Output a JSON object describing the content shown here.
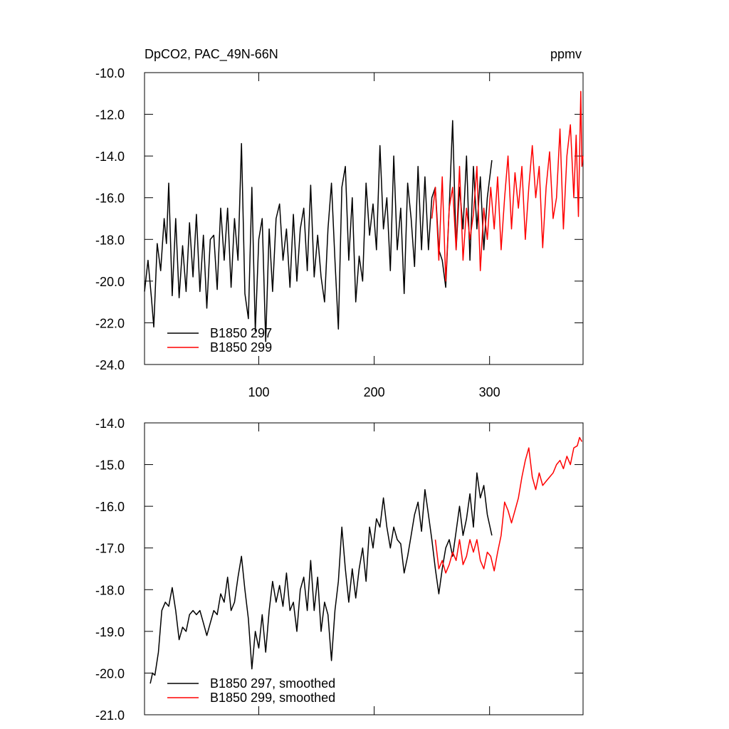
{
  "chart_data": [
    {
      "type": "line",
      "title": "DpCO2, PAC_49N-66N",
      "subtitle": "ppmv",
      "xlim": [
        1,
        381
      ],
      "xticks": [
        100,
        200,
        300
      ],
      "xtick_labels": true,
      "ylim": [
        -24,
        -10
      ],
      "yticks": [
        {
          "value": -24,
          "label": "-24.0"
        },
        {
          "value": -22,
          "label": "-22.0"
        },
        {
          "value": -20,
          "label": "-20.0"
        },
        {
          "value": -18,
          "label": "-18.0"
        },
        {
          "value": -16,
          "label": "-16.0"
        },
        {
          "value": -14,
          "label": "-14.0"
        },
        {
          "value": -12,
          "label": "-12.0"
        },
        {
          "value": -10,
          "label": "-10.0"
        }
      ],
      "legend": "lower left",
      "series": [
        {
          "name": "B1850 297",
          "color": "#000000",
          "x": [
            1,
            4,
            7,
            9,
            12,
            15,
            18,
            20,
            22,
            25,
            28,
            31,
            34,
            37,
            40,
            43,
            46,
            49,
            52,
            55,
            58,
            61,
            64,
            67,
            70,
            73,
            76,
            79,
            82,
            85,
            88,
            91,
            94,
            97,
            100,
            103,
            106,
            109,
            112,
            115,
            118,
            121,
            124,
            127,
            130,
            133,
            136,
            139,
            142,
            145,
            148,
            151,
            154,
            157,
            160,
            163,
            166,
            169,
            172,
            175,
            178,
            181,
            184,
            187,
            190,
            193,
            196,
            199,
            202,
            205,
            208,
            211,
            214,
            217,
            220,
            223,
            226,
            229,
            232,
            235,
            238,
            241,
            244,
            247,
            250,
            253,
            256,
            259,
            262,
            265,
            268,
            271,
            274,
            277,
            280,
            283,
            286,
            289,
            292,
            295,
            298,
            302
          ],
          "values": [
            -20.5,
            -19,
            -20.8,
            -22.2,
            -18.2,
            -19.5,
            -17,
            -18.2,
            -15.3,
            -20.7,
            -17,
            -20.8,
            -18.3,
            -20.5,
            -17.2,
            -19.8,
            -16.8,
            -20.5,
            -17.8,
            -21.3,
            -18,
            -17.8,
            -20.4,
            -16.5,
            -19,
            -16.5,
            -20.3,
            -17,
            -19,
            -13.4,
            -20.6,
            -21.8,
            -15.5,
            -22.4,
            -18,
            -17,
            -22.9,
            -17.5,
            -20.5,
            -17,
            -16.3,
            -19,
            -17.5,
            -20.3,
            -16.8,
            -20,
            -17.5,
            -16.5,
            -19.5,
            -15.4,
            -19.8,
            -17.8,
            -19.8,
            -21,
            -17.5,
            -15.3,
            -19,
            -22.3,
            -15.5,
            -14.5,
            -19,
            -16,
            -21,
            -18.8,
            -20,
            -15.3,
            -17.8,
            -16.3,
            -18.5,
            -13.5,
            -17.5,
            -16,
            -19.5,
            -14,
            -18.5,
            -16.5,
            -20.6,
            -15.3,
            -17,
            -19.3,
            -14.5,
            -18.5,
            -15,
            -18.5,
            -16,
            -15.5,
            -18.5,
            -19,
            -20.3,
            -16.5,
            -12.3,
            -18.5,
            -15.5,
            -17.5,
            -14,
            -19,
            -14.5,
            -17.5,
            -15,
            -18.5,
            -16,
            -14.2
          ]
        },
        {
          "name": "B1850 299",
          "color": "#ff0000",
          "x": [
            250,
            253,
            256,
            259,
            262,
            265,
            268,
            271,
            274,
            277,
            280,
            283,
            286,
            289,
            292,
            295,
            298,
            301,
            304,
            307,
            310,
            313,
            316,
            319,
            322,
            325,
            328,
            331,
            334,
            337,
            340,
            343,
            346,
            349,
            352,
            355,
            358,
            361,
            364,
            367,
            370,
            373,
            375,
            377,
            379,
            380,
            381
          ],
          "values": [
            -17,
            -15.5,
            -19,
            -15,
            -20,
            -16.5,
            -15.5,
            -18.5,
            -14.5,
            -19,
            -16.5,
            -18,
            -16.8,
            -14.5,
            -19.5,
            -16.5,
            -18,
            -15.5,
            -17.5,
            -15,
            -18.5,
            -16,
            -14,
            -17.5,
            -14.8,
            -16.5,
            -14.5,
            -18,
            -15.5,
            -13.5,
            -16,
            -14.5,
            -18.4,
            -15.5,
            -13.8,
            -17,
            -16,
            -12.7,
            -17.5,
            -14,
            -12.5,
            -16,
            -13,
            -16.9,
            -10.9,
            -14.5,
            -14
          ]
        }
      ]
    },
    {
      "type": "line",
      "xlim": [
        1,
        381
      ],
      "xticks": [
        100,
        200,
        300
      ],
      "xtick_labels": false,
      "ylim": [
        -21,
        -14
      ],
      "yticks": [
        {
          "value": -21,
          "label": "-21.0"
        },
        {
          "value": -20,
          "label": "-20.0"
        },
        {
          "value": -19,
          "label": "-19.0"
        },
        {
          "value": -18,
          "label": "-18.0"
        },
        {
          "value": -17,
          "label": "-17.0"
        },
        {
          "value": -16,
          "label": "-16.0"
        },
        {
          "value": -15,
          "label": "-15.0"
        },
        {
          "value": -14,
          "label": "-14.0"
        }
      ],
      "legend": "lower left",
      "series": [
        {
          "name": "B1850 297, smoothed",
          "color": "#000000",
          "x": [
            6,
            8,
            10,
            13,
            16,
            19,
            22,
            25,
            28,
            31,
            34,
            37,
            40,
            43,
            46,
            49,
            52,
            55,
            58,
            61,
            64,
            67,
            70,
            73,
            76,
            79,
            82,
            85,
            88,
            91,
            94,
            97,
            100,
            103,
            106,
            109,
            112,
            115,
            118,
            121,
            124,
            127,
            130,
            133,
            136,
            139,
            142,
            145,
            148,
            151,
            154,
            157,
            160,
            163,
            166,
            169,
            172,
            175,
            178,
            181,
            184,
            187,
            190,
            193,
            196,
            199,
            202,
            205,
            208,
            211,
            214,
            217,
            220,
            223,
            226,
            229,
            232,
            235,
            238,
            241,
            244,
            247,
            250,
            253,
            256,
            259,
            262,
            265,
            268,
            271,
            274,
            277,
            280,
            283,
            286,
            289,
            292,
            295,
            298,
            302
          ],
          "values": [
            -20.25,
            -20,
            -20.05,
            -19.5,
            -18.5,
            -18.3,
            -18.4,
            -17.95,
            -18.5,
            -19.2,
            -18.9,
            -19,
            -18.6,
            -18.5,
            -18.6,
            -18.5,
            -18.8,
            -19.1,
            -18.8,
            -18.5,
            -18.6,
            -18.1,
            -18.3,
            -17.7,
            -18.5,
            -18.3,
            -17.7,
            -17.2,
            -18,
            -18.7,
            -19.9,
            -19,
            -19.4,
            -18.6,
            -19.5,
            -18.5,
            -17.8,
            -18.3,
            -17.9,
            -18.4,
            -17.6,
            -18.5,
            -18.3,
            -19,
            -18,
            -17.7,
            -18.5,
            -17.3,
            -18.5,
            -17.7,
            -19,
            -18.3,
            -18.6,
            -19.7,
            -18.5,
            -17.8,
            -16.5,
            -17.5,
            -18.3,
            -17.5,
            -18.2,
            -17.5,
            -17,
            -17.8,
            -16.5,
            -17,
            -16.3,
            -16.5,
            -15.8,
            -16.5,
            -17,
            -16.5,
            -16.8,
            -16.9,
            -17.6,
            -17.2,
            -16.7,
            -16.2,
            -15.9,
            -16.6,
            -15.6,
            -16.2,
            -16.8,
            -17.5,
            -18.1,
            -17.5,
            -17,
            -16.8,
            -17.2,
            -16.6,
            -16,
            -16.7,
            -16.3,
            -15.7,
            -16.5,
            -15.2,
            -15.8,
            -15.5,
            -16.2,
            -16.7
          ]
        },
        {
          "name": "B1850 299, smoothed",
          "color": "#ff0000",
          "x": [
            253,
            256,
            259,
            262,
            265,
            268,
            271,
            274,
            277,
            280,
            283,
            286,
            289,
            292,
            295,
            298,
            301,
            304,
            307,
            310,
            313,
            316,
            319,
            322,
            325,
            328,
            331,
            334,
            337,
            340,
            343,
            346,
            349,
            352,
            355,
            358,
            361,
            364,
            367,
            370,
            373,
            376,
            378,
            380
          ],
          "values": [
            -16.8,
            -17.5,
            -17.3,
            -17.6,
            -17.4,
            -17.1,
            -17.3,
            -16.8,
            -17.4,
            -17.2,
            -16.8,
            -17.1,
            -16.8,
            -17.3,
            -17.5,
            -17.1,
            -17.2,
            -17.55,
            -17.1,
            -16.7,
            -15.9,
            -16.1,
            -16.4,
            -16.1,
            -15.8,
            -15.3,
            -14.9,
            -14.6,
            -15.3,
            -15.6,
            -15.2,
            -15.5,
            -15.4,
            -15.3,
            -15.2,
            -15,
            -14.9,
            -15.1,
            -14.8,
            -15,
            -14.6,
            -14.55,
            -14.35,
            -14.45
          ]
        }
      ]
    }
  ]
}
